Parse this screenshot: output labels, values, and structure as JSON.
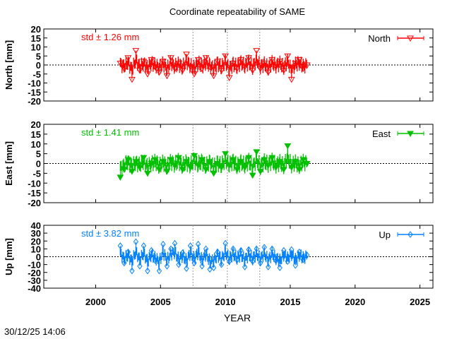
{
  "chart_data": [
    {
      "type": "scatter",
      "title": "Coordinate repeatability of SAME",
      "ylabel": "North [mm]",
      "ylim": [
        -20,
        20
      ],
      "yticks": [
        20,
        15,
        10,
        5,
        0,
        -5,
        -10,
        -15,
        -20
      ],
      "xlim": [
        1996,
        2026
      ],
      "annotation": "std ± 1.26 mm",
      "color": "#ff0000",
      "marker": "open-down-triangle",
      "legend": "top-right",
      "series": [
        {
          "name": "North",
          "x": [
            2001.9,
            2002.2,
            2002.5,
            2002.8,
            2003.1,
            2003.4,
            2003.7,
            2004.0,
            2004.3,
            2004.6,
            2004.9,
            2005.2,
            2005.5,
            2005.8,
            2006.1,
            2006.4,
            2006.7,
            2007.0,
            2007.3,
            2007.6,
            2007.9,
            2008.2,
            2008.5,
            2008.8,
            2009.1,
            2009.4,
            2009.7,
            2010.0,
            2010.3,
            2010.6,
            2010.9,
            2011.2,
            2011.5,
            2011.8,
            2012.1,
            2012.4,
            2012.7,
            2013.0,
            2013.3,
            2013.6,
            2013.9,
            2014.2,
            2014.5,
            2014.8,
            2015.1,
            2015.4,
            2015.7,
            2016.0,
            2016.3
          ],
          "y": [
            1,
            -2,
            4,
            -8,
            8,
            -3,
            2,
            -5,
            3,
            -1,
            -4,
            2,
            -6,
            4,
            -2,
            1,
            -3,
            6,
            -1,
            -5,
            3,
            -2,
            4,
            -1,
            -6,
            2,
            -3,
            5,
            -7,
            1,
            -2,
            3,
            -1,
            4,
            -3,
            8,
            -2,
            1,
            -4,
            3,
            -1,
            2,
            -3,
            5,
            -8,
            1,
            3,
            -2,
            0
          ]
        }
      ]
    },
    {
      "type": "scatter",
      "ylabel": "East [mm]",
      "ylim": [
        -20,
        20
      ],
      "yticks": [
        20,
        15,
        10,
        5,
        0,
        -5,
        -10,
        -15,
        -20
      ],
      "xlim": [
        1996,
        2026
      ],
      "annotation": "std ± 1.41 mm",
      "color": "#00c000",
      "marker": "filled-down-triangle",
      "legend": "top-right",
      "series": [
        {
          "name": "East",
          "x": [
            2001.9,
            2002.2,
            2002.5,
            2002.8,
            2003.1,
            2003.4,
            2003.7,
            2004.0,
            2004.3,
            2004.6,
            2004.9,
            2005.2,
            2005.5,
            2005.8,
            2006.1,
            2006.4,
            2006.7,
            2007.0,
            2007.3,
            2007.6,
            2007.9,
            2008.2,
            2008.5,
            2008.8,
            2009.1,
            2009.4,
            2009.7,
            2010.0,
            2010.3,
            2010.6,
            2010.9,
            2011.2,
            2011.5,
            2011.8,
            2012.1,
            2012.4,
            2012.7,
            2013.0,
            2013.3,
            2013.6,
            2013.9,
            2014.2,
            2014.5,
            2014.8,
            2015.1,
            2015.4,
            2015.7,
            2016.0,
            2016.3
          ],
          "y": [
            -7,
            -3,
            2,
            -4,
            1,
            -2,
            3,
            -5,
            0,
            2,
            -3,
            1,
            -4,
            2,
            -1,
            3,
            -3,
            1,
            -2,
            4,
            -1,
            2,
            -3,
            1,
            -5,
            0,
            -2,
            5,
            -1,
            2,
            -3,
            1,
            -2,
            3,
            -6,
            6,
            -4,
            2,
            -1,
            3,
            -2,
            1,
            -3,
            9,
            -2,
            1,
            -3,
            2,
            0
          ]
        }
      ]
    },
    {
      "type": "scatter",
      "ylabel": "Up [mm]",
      "ylim": [
        -40,
        40
      ],
      "yticks": [
        40,
        30,
        20,
        10,
        0,
        -10,
        -20,
        -30,
        -40
      ],
      "xlim": [
        1996,
        2026
      ],
      "xlabel": "YEAR",
      "xticks": [
        2000,
        2005,
        2010,
        2015,
        2020,
        2025
      ],
      "annotation": "std ± 3.82 mm",
      "color": "#0080ff",
      "marker": "open-diamond",
      "legend": "top-right",
      "series": [
        {
          "name": "Up",
          "x": [
            2001.9,
            2002.2,
            2002.5,
            2002.8,
            2003.1,
            2003.4,
            2003.7,
            2004.0,
            2004.3,
            2004.6,
            2004.9,
            2005.2,
            2005.5,
            2005.8,
            2006.1,
            2006.4,
            2006.7,
            2007.0,
            2007.3,
            2007.6,
            2007.9,
            2008.2,
            2008.5,
            2008.8,
            2009.1,
            2009.4,
            2009.7,
            2010.0,
            2010.3,
            2010.6,
            2010.9,
            2011.2,
            2011.5,
            2011.8,
            2012.1,
            2012.4,
            2012.7,
            2013.0,
            2013.3,
            2013.6,
            2013.9,
            2014.2,
            2014.5,
            2014.8,
            2015.1,
            2015.4,
            2015.7,
            2016.0,
            2016.3
          ],
          "y": [
            14,
            -8,
            6,
            -18,
            19,
            -12,
            14,
            -18,
            8,
            -5,
            -18,
            16,
            -12,
            10,
            17,
            -10,
            5,
            -15,
            14,
            -8,
            16,
            -12,
            10,
            -16,
            -14,
            6,
            -10,
            17,
            -6,
            10,
            -4,
            8,
            -13,
            9,
            -6,
            10,
            -8,
            12,
            -13,
            10,
            -5,
            -14,
            8,
            -6,
            9,
            -11,
            6,
            -4,
            2
          ]
        }
      ]
    }
  ],
  "vertical_markers": [
    2007.5,
    2010.15,
    2012.65
  ],
  "timestamp": "30/12/25 14:06"
}
